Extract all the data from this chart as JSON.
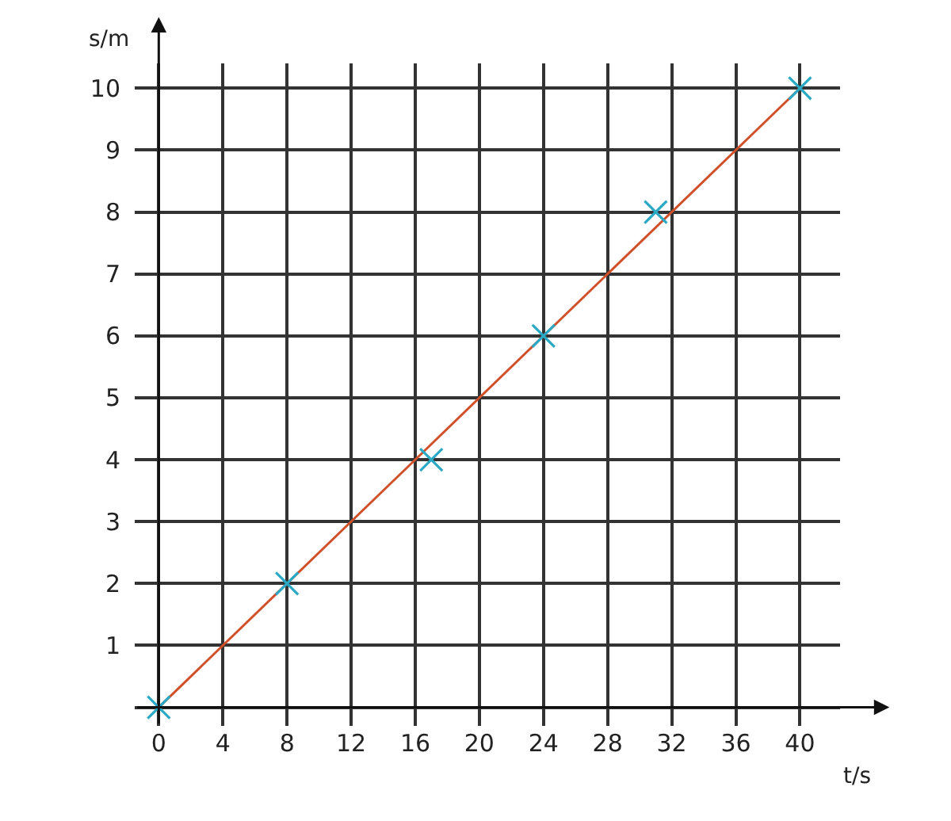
{
  "chart_data": {
    "type": "scatter",
    "xlabel": "t/s",
    "ylabel": "s/m",
    "xlim": [
      -1.5,
      42.5
    ],
    "ylim": [
      -0.3,
      10.4
    ],
    "xticks": [
      0,
      4,
      8,
      12,
      16,
      20,
      24,
      28,
      32,
      36,
      40
    ],
    "yticks": [
      {
        "value": 0,
        "label": null
      },
      1,
      2,
      3,
      4,
      5,
      6,
      7,
      8,
      9,
      10
    ],
    "grid": true,
    "legend": false,
    "series": [
      {
        "type": "line",
        "color": "#d0502a",
        "x": [
          0,
          40
        ],
        "values": [
          0,
          10
        ],
        "marker": "none"
      },
      {
        "color": "#2aa8c4",
        "x": [
          0,
          8,
          17,
          24,
          31,
          40
        ],
        "values": [
          0,
          2,
          4,
          6,
          8,
          10
        ],
        "marker": "cross"
      }
    ]
  }
}
